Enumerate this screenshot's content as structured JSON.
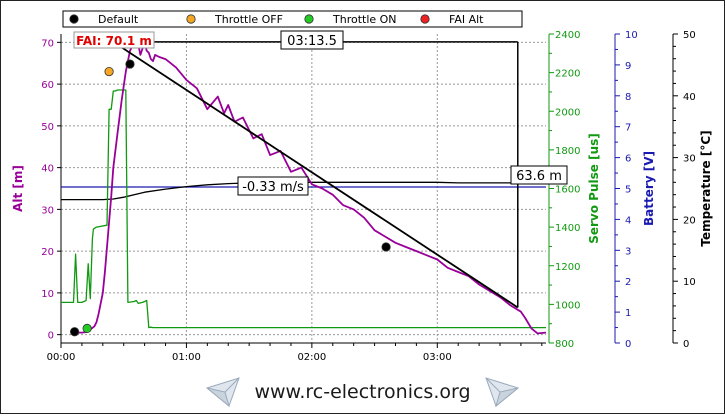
{
  "chart_data": {
    "type": "line",
    "legend": {
      "placement": "top-left",
      "items": [
        {
          "label": "Default",
          "color": "#000000"
        },
        {
          "label": "Throttle OFF",
          "color": "#f5a623"
        },
        {
          "label": "Throttle ON",
          "color": "#22cc22"
        },
        {
          "label": "FAI Alt",
          "color": "#ee2222"
        }
      ]
    },
    "x_axis": {
      "unit": "seconds",
      "range": [
        0,
        232
      ],
      "ticks": [
        {
          "value": 0,
          "label": "00:00"
        },
        {
          "value": 60,
          "label": "01:00"
        },
        {
          "value": 120,
          "label": "02:00"
        },
        {
          "value": 180,
          "label": "03:00"
        }
      ]
    },
    "axes": {
      "alt": {
        "label": "Alt [m]",
        "color": "#990099",
        "range": [
          -2,
          72
        ],
        "ticks": [
          0,
          10,
          20,
          30,
          40,
          50,
          60,
          70
        ]
      },
      "servo": {
        "label": "Servo Pulse [us]",
        "color": "#119911",
        "range": [
          800,
          2400
        ],
        "ticks": [
          800,
          1000,
          1200,
          1400,
          1600,
          1800,
          2000,
          2200,
          2400
        ]
      },
      "battery": {
        "label": "Battery [V]",
        "color": "#1a1ab0",
        "range": [
          0,
          10
        ],
        "ticks": [
          0,
          1,
          2,
          3,
          4,
          5,
          6,
          7,
          8,
          9,
          10
        ]
      },
      "temperature": {
        "label": "Temperature [°C]",
        "color": "#000000",
        "range": [
          0,
          50
        ],
        "ticks": [
          0,
          10,
          20,
          30,
          40,
          50
        ]
      }
    },
    "series": [
      {
        "name": "Alt",
        "axis": "alt",
        "color": "#990099",
        "x": [
          5,
          10,
          12,
          14,
          16,
          17,
          18,
          19,
          20,
          21,
          22,
          23,
          24,
          25,
          27,
          29,
          31,
          33,
          35,
          37,
          38,
          40,
          41,
          42,
          43,
          44,
          45,
          47,
          50,
          55,
          60,
          65,
          70,
          75,
          78,
          80,
          83,
          87,
          92,
          96,
          100,
          105,
          110,
          115,
          120,
          125,
          130,
          135,
          140,
          145,
          150,
          155,
          160,
          165,
          170,
          175,
          180,
          185,
          190,
          195,
          200,
          205,
          210,
          215,
          220,
          222,
          225,
          228,
          232
        ],
        "y": [
          0.5,
          0.5,
          0.6,
          1.2,
          2,
          3,
          5,
          7.5,
          10,
          15,
          21,
          27,
          33,
          40,
          48,
          56,
          63,
          68,
          70,
          69.5,
          67,
          70,
          68,
          67.5,
          66,
          65.5,
          67,
          66.5,
          66,
          64,
          61,
          59,
          54,
          57,
          53,
          55,
          51,
          52,
          47,
          48,
          43,
          44,
          39,
          40,
          36,
          35,
          33.5,
          31,
          30,
          28,
          25,
          23.5,
          22,
          21,
          20,
          19,
          18,
          16,
          15,
          14,
          12,
          10.5,
          9,
          7,
          5.5,
          4,
          1.5,
          0.3,
          0.5
        ]
      },
      {
        "name": "Servo",
        "axis": "servo",
        "color": "#119911",
        "x": [
          0,
          5,
          6,
          7,
          8,
          10,
          12,
          13,
          14,
          15,
          15.5,
          17,
          22,
          23,
          24,
          25,
          26,
          27,
          27.5,
          31,
          32,
          35,
          36,
          37,
          39,
          40,
          41,
          42,
          43,
          44,
          45,
          46,
          47,
          232
        ],
        "y": [
          1010,
          1010,
          1010,
          1260,
          1010,
          1010,
          1020,
          1210,
          1030,
          1340,
          1390,
          1400,
          1410,
          2010,
          2010,
          2105,
          2105,
          2110,
          2110,
          2110,
          1010,
          1015,
          1020,
          1005,
          1010,
          1015,
          1020,
          880,
          882,
          880,
          880,
          880,
          880,
          880
        ]
      },
      {
        "name": "Battery",
        "axis": "battery",
        "color": "#1a1ab0",
        "x": [
          0,
          232
        ],
        "y": [
          5.05,
          5.05
        ]
      },
      {
        "name": "Temperature",
        "axis": "temperature",
        "color": "#000000",
        "x": [
          0,
          10,
          20,
          25,
          30,
          40,
          50,
          60,
          70,
          80,
          90,
          100,
          110,
          120,
          130,
          140,
          150,
          160,
          170,
          180,
          190,
          200,
          210,
          220,
          232
        ],
        "y": [
          23.2,
          23.2,
          23.2,
          23.3,
          23.6,
          24.4,
          24.9,
          25.3,
          25.6,
          25.8,
          25.9,
          26,
          26,
          26,
          26,
          26,
          26,
          26,
          26,
          26,
          25.9,
          25.9,
          25.9,
          25.9,
          25.9
        ]
      }
    ],
    "markers": [
      {
        "type": "Default",
        "color": "#000000",
        "x": 6.5,
        "y": 0.7
      },
      {
        "type": "Throttle ON",
        "color": "#22cc22",
        "x": 12.5,
        "y": 1.5
      },
      {
        "type": "Throttle OFF",
        "color": "#f5a623",
        "x": 23,
        "y": 63
      },
      {
        "type": "FAI Alt",
        "color": "#ee2222",
        "x": 25,
        "y": 70.1
      },
      {
        "type": "Default",
        "color": "#000000",
        "x": 33,
        "y": 64.8
      },
      {
        "type": "Default",
        "color": "#000000",
        "x": 155.5,
        "y": 21
      }
    ],
    "annotations": {
      "fai_label": "FAI: 70.1 m",
      "duration_label": "03:13.5",
      "slope_label": "-0.33 m/s",
      "height_label": "63.6 m",
      "duration_line": {
        "x": [
          25,
          218.5
        ],
        "y": 70.1
      },
      "drop_line": {
        "x": 218.5,
        "y": [
          70.1,
          6.5
        ]
      },
      "slope_line": {
        "x": [
          25,
          218.5
        ],
        "y": [
          70.1,
          6.5
        ]
      }
    },
    "grid": true
  },
  "footer": {
    "url": "www.rc-electronics.org",
    "icon": "paper-plane-icon"
  }
}
